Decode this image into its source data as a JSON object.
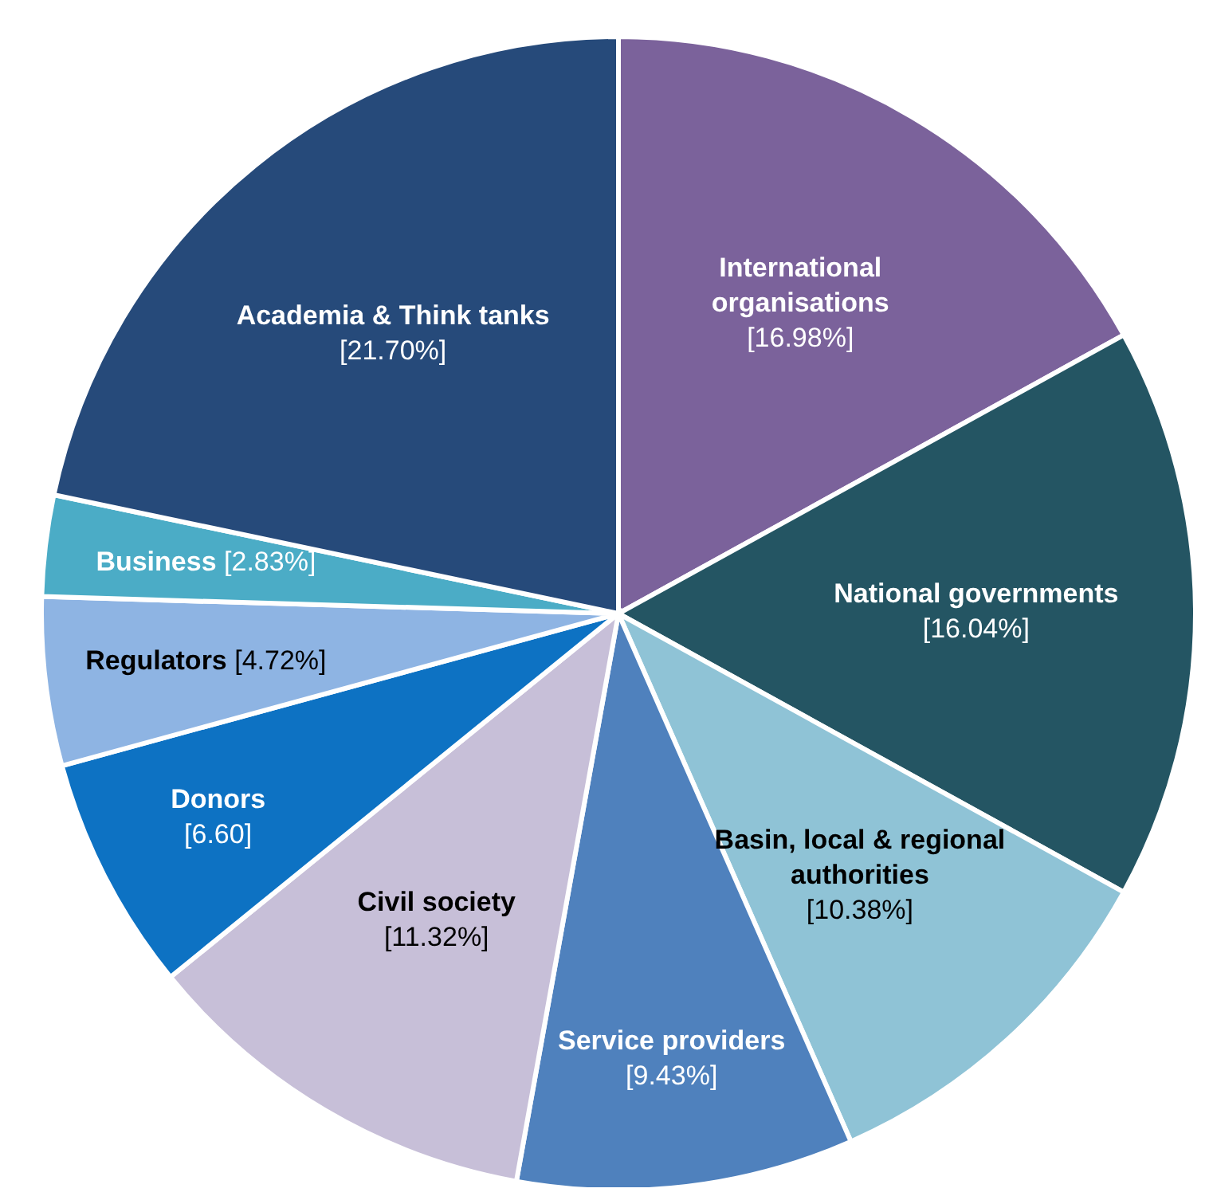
{
  "chart_data": {
    "type": "pie",
    "categories": [
      "International organisations",
      "National governments",
      "Basin, local & regional authorities",
      "Service providers",
      "Civil society",
      "Donors",
      "Regulators",
      "Business",
      "Academia & Think tanks"
    ],
    "values": [
      16.98,
      16.04,
      10.38,
      9.43,
      11.32,
      6.6,
      4.72,
      2.83,
      21.7
    ],
    "value_labels": [
      "[16.98%]",
      "[16.04%]",
      "[10.38%]",
      "[9.43%]",
      "[11.32%]",
      "[6.60]",
      "[4.72%]",
      "[2.83%]",
      "[21.70%]"
    ],
    "colors": [
      "#7b629b",
      "#245563",
      "#8fc3d6",
      "#4f81bd",
      "#c7bfd8",
      "#0d72c3",
      "#8eb4e3",
      "#4bacc6",
      "#264a7a"
    ],
    "legend": false
  }
}
